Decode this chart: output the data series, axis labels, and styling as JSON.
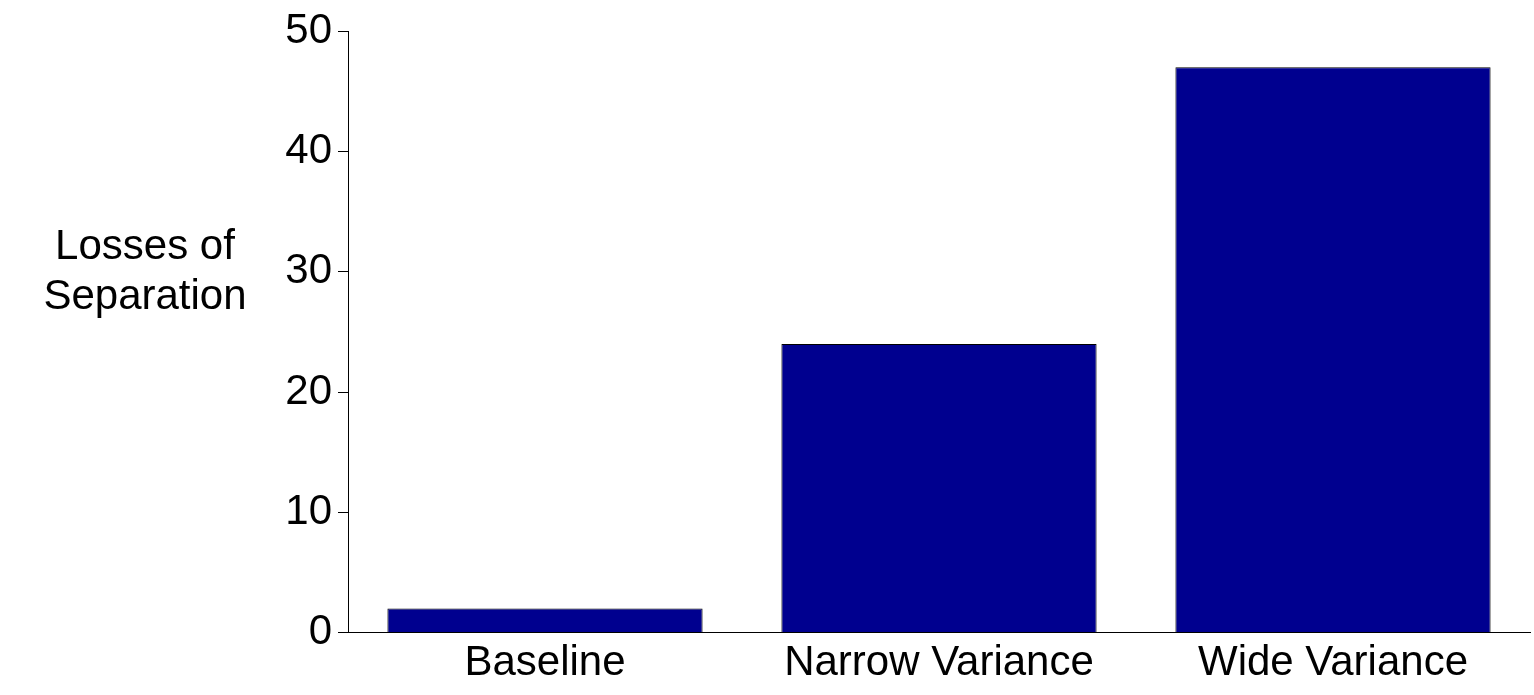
{
  "chart_data": {
    "type": "bar",
    "ylabel": "Losses of Separation",
    "categories": [
      "Baseline",
      "Narrow Variance",
      "Wide Variance"
    ],
    "values": [
      2,
      24,
      47
    ],
    "color": "#00008f",
    "ylim": [
      0,
      50
    ],
    "yticks": [
      0,
      10,
      20,
      30,
      40,
      50
    ],
    "grid": false,
    "legend": false
  }
}
